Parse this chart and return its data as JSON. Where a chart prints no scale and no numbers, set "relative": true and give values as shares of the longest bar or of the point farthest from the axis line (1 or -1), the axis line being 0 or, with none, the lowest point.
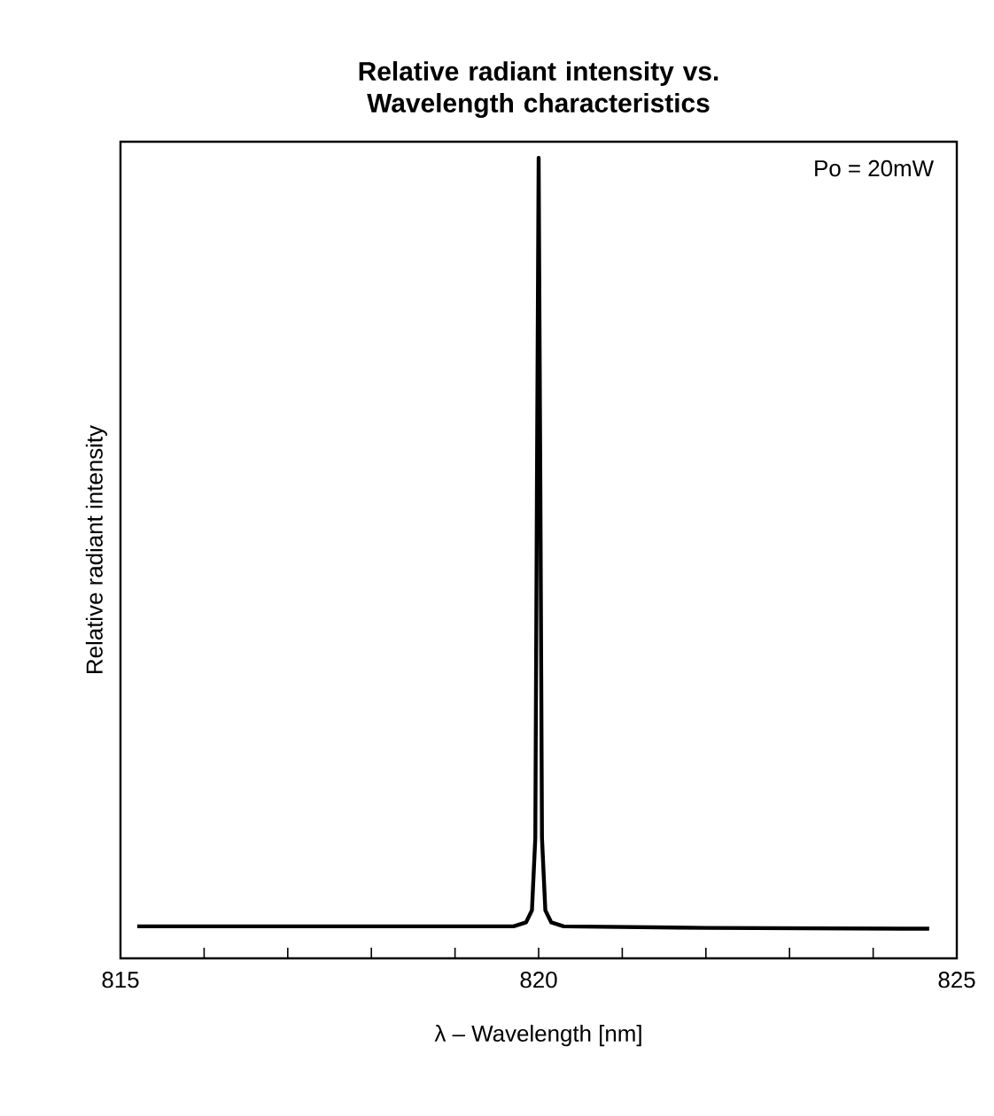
{
  "chart_data": {
    "type": "line",
    "title": "Relative radiant intensity vs. Wavelength characteristics",
    "xlabel": "λ – Wavelength [nm]",
    "ylabel": "Relative radiant intensity",
    "relative": true,
    "xlim": [
      815,
      825
    ],
    "xticks": [
      815,
      {
        "value": 816,
        "label": null
      },
      {
        "value": 817,
        "label": null
      },
      {
        "value": 818,
        "label": null
      },
      {
        "value": 819,
        "label": null
      },
      820,
      {
        "value": 821,
        "label": null
      },
      {
        "value": 822,
        "label": null
      },
      {
        "value": 823,
        "label": null
      },
      {
        "value": 824,
        "label": null
      },
      825
    ],
    "tick_labels": "x",
    "grid": false,
    "marker": "none",
    "line_style": "solid",
    "annotations": [
      "Po = 20mW"
    ],
    "series": [
      {
        "color": "#000000",
        "x": [
          815.2,
          817,
          819.7,
          819.85,
          819.92,
          819.96,
          819.98,
          820,
          820.02,
          820.04,
          820.08,
          820.15,
          820.3,
          822,
          824.67
        ],
        "values": [
          0.04,
          0.04,
          0.04,
          0.045,
          0.06,
          0.15,
          0.6,
          1,
          0.6,
          0.15,
          0.06,
          0.045,
          0.04,
          0.038,
          0.037
        ]
      }
    ]
  }
}
